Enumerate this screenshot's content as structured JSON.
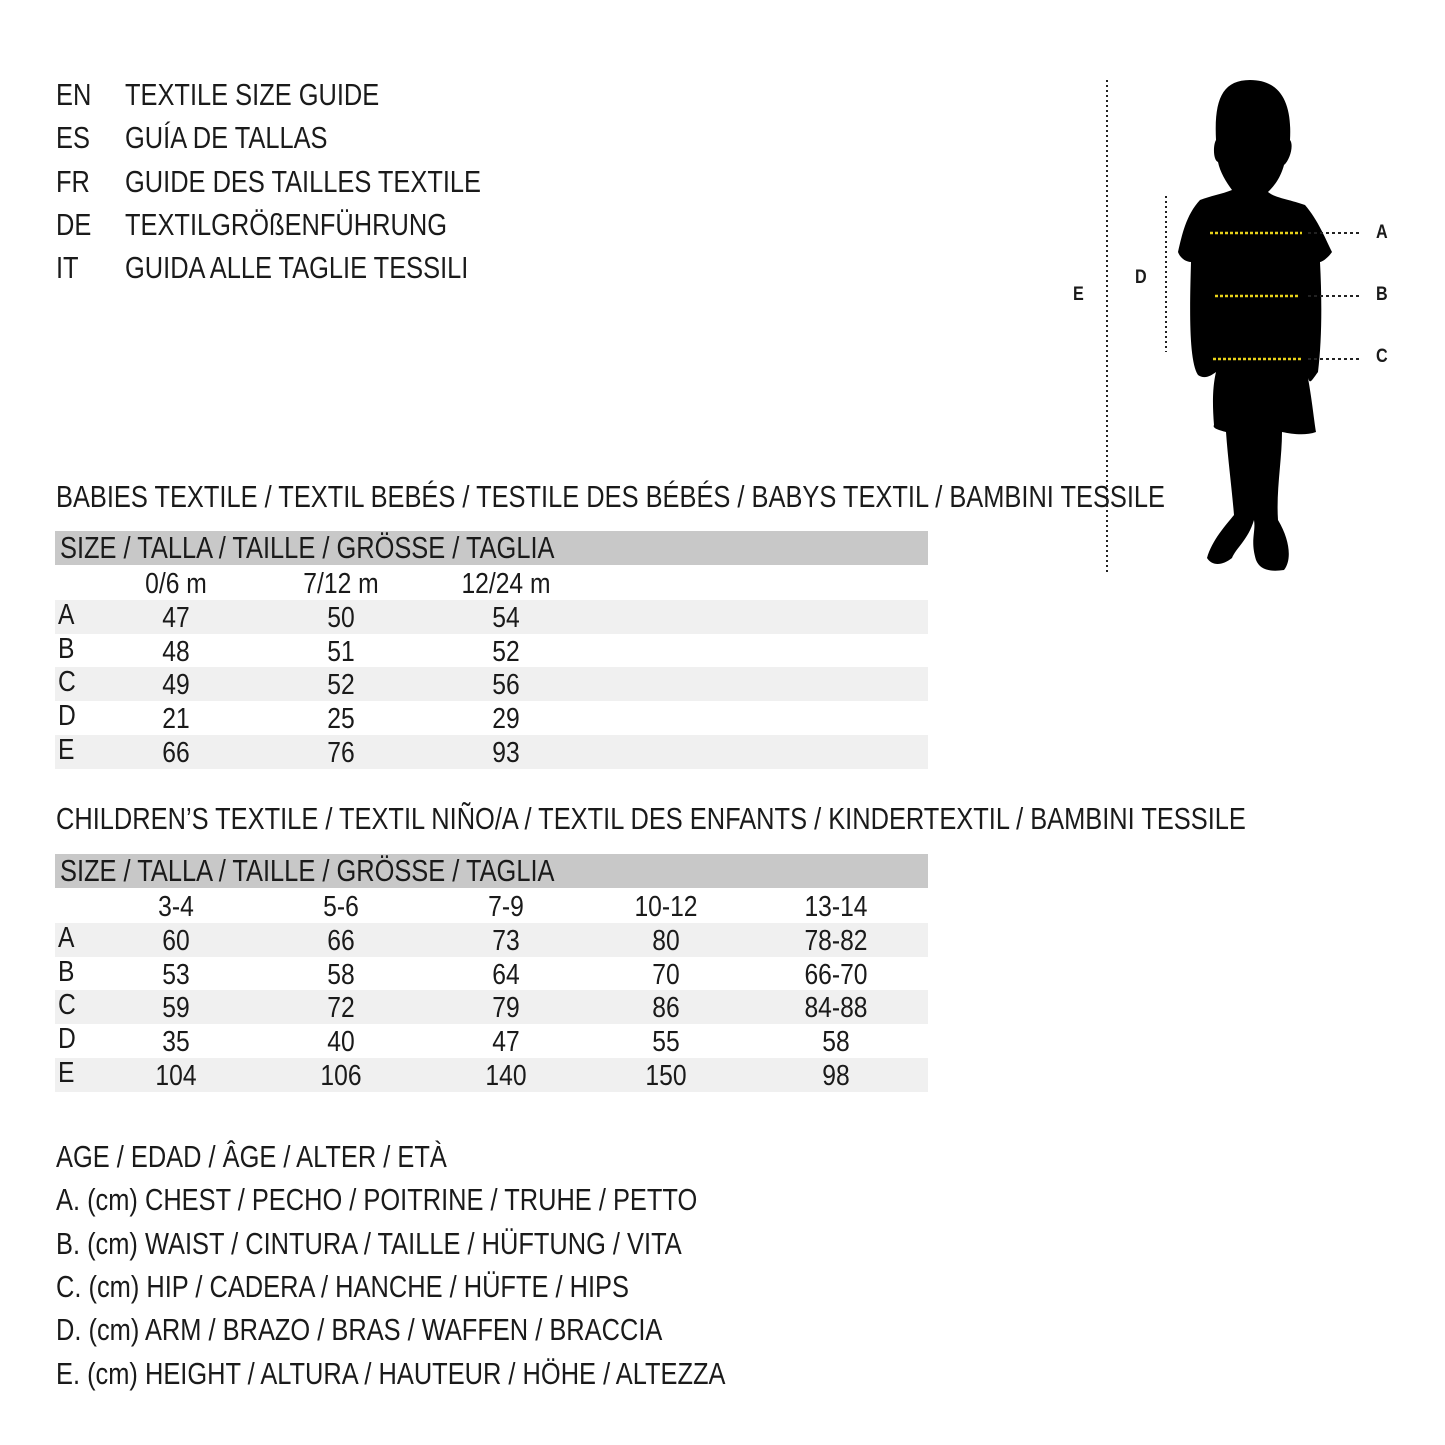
{
  "titles": [
    {
      "lang": "EN",
      "text": "TEXTILE SIZE GUIDE"
    },
    {
      "lang": "ES",
      "text": "GUÍA DE TALLAS"
    },
    {
      "lang": "FR",
      "text": "GUIDE DES TAILLES TEXTILE"
    },
    {
      "lang": "DE",
      "text": "TEXTILGRÖßENFÜHRUNG"
    },
    {
      "lang": "IT",
      "text": "GUIDA ALLE TAGLIE TESSILI"
    }
  ],
  "babies": {
    "heading": "BABIES TEXTILE / TEXTIL BEBÉS / TESTILE DES BÉBÉS / BABYS TEXTIL / BAMBINI TESSILE",
    "size_label": "SIZE / TALLA / TAILLE / GRÖSSE / TAGLIA",
    "columns": [
      "0/6 m",
      "7/12 m",
      "12/24 m"
    ],
    "rows": [
      {
        "label": "A",
        "values": [
          "47",
          "50",
          "54"
        ]
      },
      {
        "label": "B",
        "values": [
          "48",
          "51",
          "52"
        ]
      },
      {
        "label": "C",
        "values": [
          "49",
          "52",
          "56"
        ]
      },
      {
        "label": "D",
        "values": [
          "21",
          "25",
          "29"
        ]
      },
      {
        "label": "E",
        "values": [
          "66",
          "76",
          "93"
        ]
      }
    ]
  },
  "children": {
    "heading": "CHILDREN’S TEXTILE / TEXTIL NIÑO/A / TEXTIL DES ENFANTS / KINDERTEXTIL / BAMBINI TESSILE",
    "size_label": "SIZE / TALLA / TAILLE / GRÖSSE / TAGLIA",
    "columns": [
      "3-4",
      "5-6",
      "7-9",
      "10-12",
      "13-14"
    ],
    "rows": [
      {
        "label": "A",
        "values": [
          "60",
          "66",
          "73",
          "80",
          "78-82"
        ]
      },
      {
        "label": "B",
        "values": [
          "53",
          "58",
          "64",
          "70",
          "66-70"
        ]
      },
      {
        "label": "C",
        "values": [
          "59",
          "72",
          "79",
          "86",
          "84-88"
        ]
      },
      {
        "label": "D",
        "values": [
          "35",
          "40",
          "47",
          "55",
          "58"
        ]
      },
      {
        "label": "E",
        "values": [
          "104",
          "106",
          "140",
          "150",
          "98"
        ]
      }
    ]
  },
  "legend": [
    "AGE / EDAD / ÂGE / ALTER / ETÀ",
    "A. (cm) CHEST / PECHO / POITRINE / TRUHE / PETTO",
    "B. (cm) WAIST / CINTURA / TAILLE / HÜFTUNG / VITA",
    "C. (cm) HIP / CADERA / HANCHE / HÜFTE / HIPS",
    "D. (cm) ARM / BRAZO / BRAS / WAFFEN / BRACCIA",
    "E. (cm) HEIGHT / ALTURA / HAUTEUR / HÖHE / ALTEZZA"
  ],
  "diagram": {
    "labels": {
      "A": "A",
      "B": "B",
      "C": "C",
      "D": "D",
      "E": "E"
    },
    "measure_line_color": "#e8d21a"
  }
}
